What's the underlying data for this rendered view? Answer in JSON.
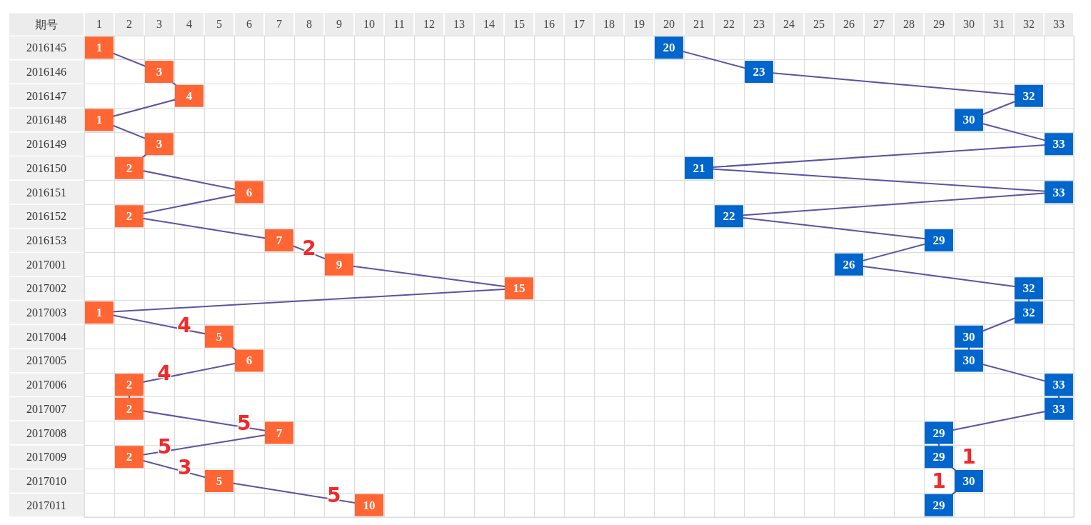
{
  "chart_data": {
    "type": "line",
    "orientation": "horizontal",
    "ylabel": "期号",
    "categories": [
      "2016145",
      "2016146",
      "2016147",
      "2016148",
      "2016149",
      "2016150",
      "2016151",
      "2016152",
      "2016153",
      "2017001",
      "2017002",
      "2017003",
      "2017004",
      "2017005",
      "2017006",
      "2017007",
      "2017008",
      "2017009",
      "2017010",
      "2017011"
    ],
    "series": [
      {
        "color": "#ff6633",
        "values": [
          1,
          3,
          4,
          1,
          3,
          2,
          6,
          2,
          7,
          9,
          15,
          1,
          5,
          6,
          2,
          2,
          7,
          2,
          5,
          10
        ]
      },
      {
        "color": "#0066cc",
        "values": [
          20,
          23,
          32,
          30,
          33,
          21,
          33,
          22,
          29,
          26,
          32,
          32,
          30,
          30,
          33,
          33,
          29,
          29,
          30,
          29
        ]
      }
    ],
    "xlim": [
      0.5,
      33.5
    ],
    "xticks": [
      1,
      2,
      3,
      4,
      5,
      6,
      7,
      8,
      9,
      10,
      11,
      12,
      13,
      14,
      15,
      16,
      17,
      18,
      19,
      20,
      21,
      22,
      23,
      24,
      25,
      26,
      27,
      28,
      29,
      30,
      31,
      32,
      33
    ],
    "grid": true,
    "marker": "square",
    "data_labels": true,
    "annotations": [
      {
        "text": "2",
        "x": 9,
        "y": "2017001"
      },
      {
        "text": "4",
        "x": 5,
        "y": "2017004"
      },
      {
        "text": "4",
        "x": 2,
        "y": "2017006"
      },
      {
        "text": "5",
        "x": 7,
        "y": "2017008"
      },
      {
        "text": "5",
        "x": 2,
        "y": "2017009"
      },
      {
        "text": "3",
        "x": 5,
        "y": "2017010"
      },
      {
        "text": "5",
        "x": 10,
        "y": "2017011"
      },
      {
        "text": "1",
        "x": 30,
        "y": "2017010"
      },
      {
        "text": "1",
        "x": 29,
        "y": "2017011"
      }
    ]
  }
}
